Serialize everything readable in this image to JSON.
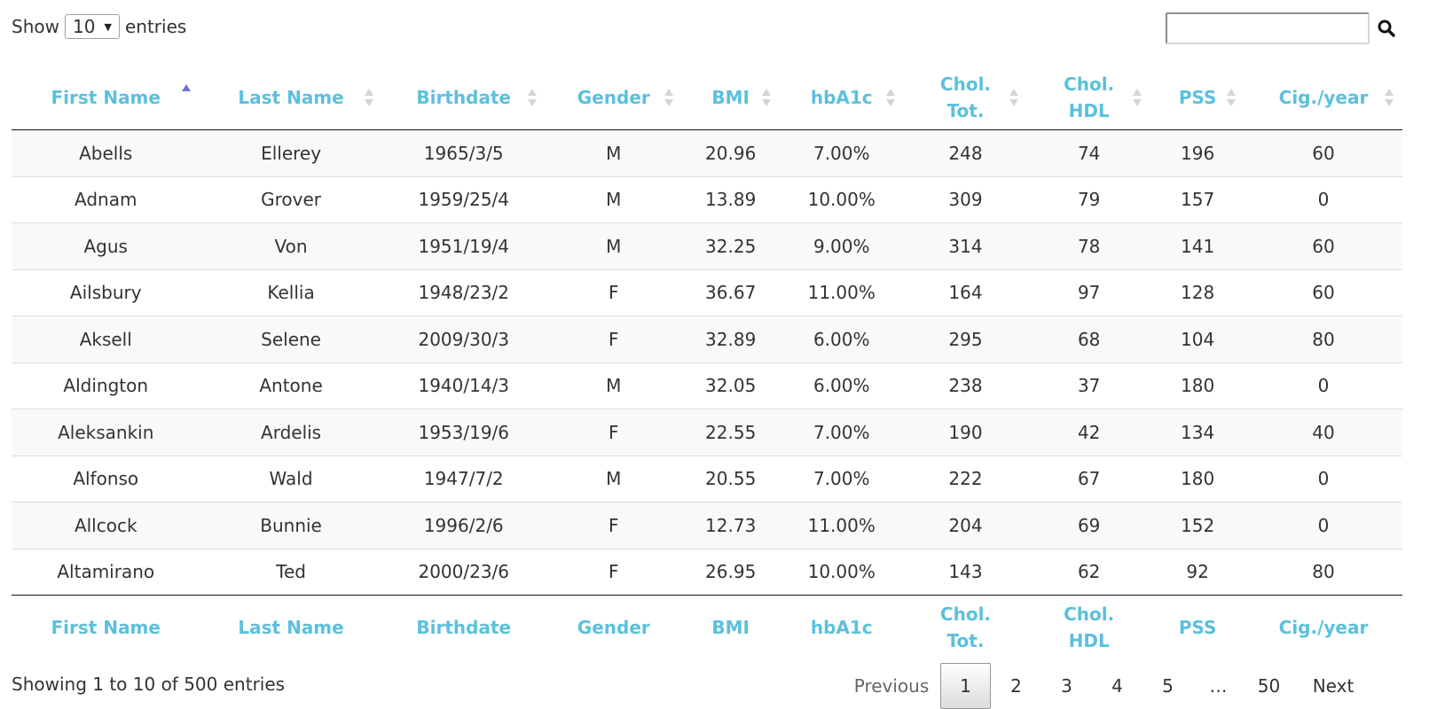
{
  "length_control": {
    "show_label": "Show",
    "value": "10",
    "entries_label": "entries"
  },
  "search": {
    "value": ""
  },
  "columns": [
    {
      "top": "First Name",
      "bottom": ""
    },
    {
      "top": "Last Name",
      "bottom": ""
    },
    {
      "top": "Birthdate",
      "bottom": ""
    },
    {
      "top": "Gender",
      "bottom": ""
    },
    {
      "top": "BMI",
      "bottom": ""
    },
    {
      "top": "hbA1c",
      "bottom": ""
    },
    {
      "top": "Chol.",
      "bottom": "Tot."
    },
    {
      "top": "Chol.",
      "bottom": "HDL"
    },
    {
      "top": "PSS",
      "bottom": ""
    },
    {
      "top": "Cig./year",
      "bottom": ""
    }
  ],
  "rows": [
    [
      "Abells",
      "Ellerey",
      "1965/3/5",
      "M",
      "20.96",
      "7.00%",
      "248",
      "74",
      "196",
      "60"
    ],
    [
      "Adnam",
      "Grover",
      "1959/25/4",
      "M",
      "13.89",
      "10.00%",
      "309",
      "79",
      "157",
      "0"
    ],
    [
      "Agus",
      "Von",
      "1951/19/4",
      "M",
      "32.25",
      "9.00%",
      "314",
      "78",
      "141",
      "60"
    ],
    [
      "Ailsbury",
      "Kellia",
      "1948/23/2",
      "F",
      "36.67",
      "11.00%",
      "164",
      "97",
      "128",
      "60"
    ],
    [
      "Aksell",
      "Selene",
      "2009/30/3",
      "F",
      "32.89",
      "6.00%",
      "295",
      "68",
      "104",
      "80"
    ],
    [
      "Aldington",
      "Antone",
      "1940/14/3",
      "M",
      "32.05",
      "6.00%",
      "238",
      "37",
      "180",
      "0"
    ],
    [
      "Aleksankin",
      "Ardelis",
      "1953/19/6",
      "F",
      "22.55",
      "7.00%",
      "190",
      "42",
      "134",
      "40"
    ],
    [
      "Alfonso",
      "Wald",
      "1947/7/2",
      "M",
      "20.55",
      "7.00%",
      "222",
      "67",
      "180",
      "0"
    ],
    [
      "Allcock",
      "Bunnie",
      "1996/2/6",
      "F",
      "12.73",
      "11.00%",
      "204",
      "69",
      "152",
      "0"
    ],
    [
      "Altamirano",
      "Ted",
      "2000/23/6",
      "F",
      "26.95",
      "10.00%",
      "143",
      "62",
      "92",
      "80"
    ]
  ],
  "info": "Showing 1 to 10 of 500 entries",
  "pagination": {
    "previous": "Previous",
    "pages": [
      "1",
      "2",
      "3",
      "4",
      "5"
    ],
    "ellipsis": "…",
    "last": "50",
    "next": "Next",
    "current": "1"
  },
  "colors": {
    "header": "#5bc0de",
    "sort_active": "#6f73c9",
    "stripe": "#f9f9f9"
  }
}
